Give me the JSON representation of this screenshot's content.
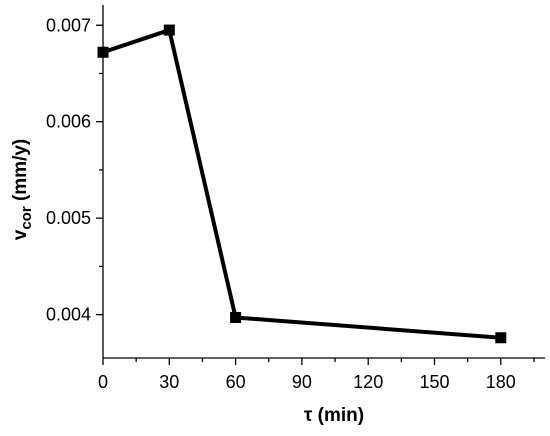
{
  "chart_data": {
    "type": "line",
    "title": "",
    "xlabel": "τ (min)",
    "ylabel_main": "v",
    "ylabel_sub": "cor",
    "ylabel_unit": " (mm/y)",
    "xlim": [
      0,
      200
    ],
    "ylim": [
      0.00355,
      0.00721
    ],
    "x_ticks": [
      0,
      30,
      60,
      90,
      120,
      150,
      180
    ],
    "x_tick_labels": [
      "0",
      "30",
      "60",
      "90",
      "120",
      "150",
      "180"
    ],
    "y_ticks": [
      0.004,
      0.005,
      0.006,
      0.007
    ],
    "y_tick_labels": [
      "0.004",
      "0.005",
      "0.006",
      "0.007"
    ],
    "y_minor_ticks": [
      0.0045,
      0.0055,
      0.0065
    ],
    "grid": false,
    "series": [
      {
        "x": [
          0,
          30,
          60,
          180
        ],
        "values": [
          0.00672,
          0.00695,
          0.00397,
          0.00376
        ],
        "marker": "square",
        "color": "#000000"
      }
    ]
  }
}
